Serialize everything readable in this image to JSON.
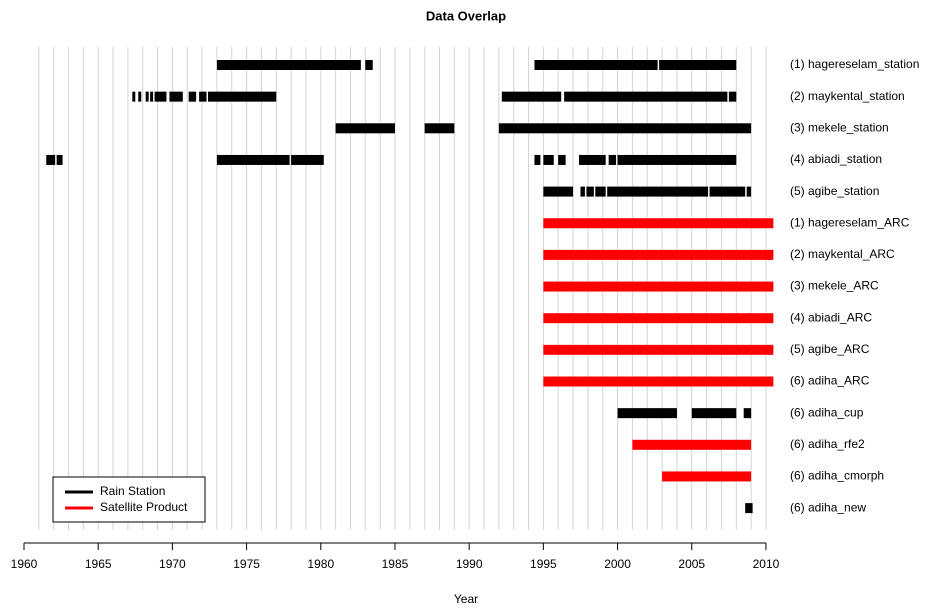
{
  "chart_data": {
    "type": "timeline",
    "title": "Data Overlap",
    "x_label": "Year",
    "xlim": [
      1960,
      2011
    ],
    "xticks": [
      1960,
      1965,
      1970,
      1975,
      1980,
      1985,
      1990,
      1995,
      2000,
      2005,
      2010
    ],
    "xgrid": [
      1961,
      1962,
      1963,
      1964,
      1965,
      1966,
      1967,
      1968,
      1969,
      1970,
      1971,
      1972,
      1973,
      1974,
      1975,
      1976,
      1977,
      1978,
      1979,
      1980,
      1981,
      1982,
      1983,
      1984,
      1985,
      1986,
      1987,
      1988,
      1989,
      1990,
      1991,
      1992,
      1993,
      1994,
      1995,
      1996,
      1997,
      1998,
      1999,
      2000,
      2001,
      2002,
      2003,
      2004,
      2005,
      2006,
      2007,
      2008,
      2009,
      2010
    ],
    "legend_position": "bottom-left",
    "legend": [
      {
        "name": "Rain Station",
        "color": "#000000"
      },
      {
        "name": "Satellite Product",
        "color": "#ff0000"
      }
    ],
    "rows": [
      {
        "name": "(1) hagereselam_station",
        "color": "#000000",
        "segments": [
          [
            1973,
            1982.7
          ],
          [
            1983,
            1983.5
          ],
          [
            1994.4,
            2002.7
          ],
          [
            2002.8,
            2008
          ]
        ]
      },
      {
        "name": "(2) maykental_station",
        "color": "#000000",
        "segments": [
          [
            1967.3,
            1967.5
          ],
          [
            1967.7,
            1967.9
          ],
          [
            1968.2,
            1968.4
          ],
          [
            1968.5,
            1968.7
          ],
          [
            1968.8,
            1969.6
          ],
          [
            1969.8,
            1970.7
          ],
          [
            1971.1,
            1971.6
          ],
          [
            1971.8,
            1972.3
          ],
          [
            1972.4,
            1977
          ],
          [
            1992.2,
            1996.2
          ],
          [
            1996.4,
            2007.4
          ],
          [
            2007.5,
            2008
          ]
        ]
      },
      {
        "name": "(3) mekele_station",
        "color": "#000000",
        "segments": [
          [
            1981,
            1985
          ],
          [
            1987,
            1989
          ],
          [
            1992,
            2009
          ]
        ]
      },
      {
        "name": "(4) abiadi_station",
        "color": "#000000",
        "segments": [
          [
            1961.5,
            1962.1
          ],
          [
            1962.2,
            1962.6
          ],
          [
            1973,
            1977.9
          ],
          [
            1978,
            1980.2
          ],
          [
            1994.4,
            1994.8
          ],
          [
            1995,
            1995.7
          ],
          [
            1996,
            1996.5
          ],
          [
            1997.4,
            1999.2
          ],
          [
            1999.4,
            1999.9
          ],
          [
            2000,
            2008
          ]
        ]
      },
      {
        "name": "(5) agibe_station",
        "color": "#000000",
        "segments": [
          [
            1995,
            1997
          ],
          [
            1997.5,
            1997.8
          ],
          [
            1997.9,
            1998.4
          ],
          [
            1998.5,
            1999.2
          ],
          [
            1999.3,
            2006.1
          ],
          [
            2006.2,
            2008.6
          ],
          [
            2008.7,
            2009
          ]
        ]
      },
      {
        "name": "(1) hagereselam_ARC",
        "color": "#ff0000",
        "segments": [
          [
            1995,
            2010.5
          ]
        ]
      },
      {
        "name": "(2) maykental_ARC",
        "color": "#ff0000",
        "segments": [
          [
            1995,
            2010.5
          ]
        ]
      },
      {
        "name": "(3) mekele_ARC",
        "color": "#ff0000",
        "segments": [
          [
            1995,
            2010.5
          ]
        ]
      },
      {
        "name": "(4) abiadi_ARC",
        "color": "#ff0000",
        "segments": [
          [
            1995,
            2010.5
          ]
        ]
      },
      {
        "name": "(5) agibe_ARC",
        "color": "#ff0000",
        "segments": [
          [
            1995,
            2010.5
          ]
        ]
      },
      {
        "name": "(6) adiha_ARC",
        "color": "#ff0000",
        "segments": [
          [
            1995,
            2010.5
          ]
        ]
      },
      {
        "name": "(6) adiha_cup",
        "color": "#000000",
        "segments": [
          [
            2000,
            2004
          ],
          [
            2005,
            2008
          ],
          [
            2008.5,
            2009
          ]
        ]
      },
      {
        "name": "(6) adiha_rfe2",
        "color": "#ff0000",
        "segments": [
          [
            2001,
            2009
          ]
        ]
      },
      {
        "name": "(6) adiha_cmorph",
        "color": "#ff0000",
        "segments": [
          [
            2003,
            2009
          ]
        ]
      },
      {
        "name": "(6) adiha_new",
        "color": "#000000",
        "segments": [
          [
            2008.6,
            2009.1
          ]
        ]
      }
    ]
  }
}
